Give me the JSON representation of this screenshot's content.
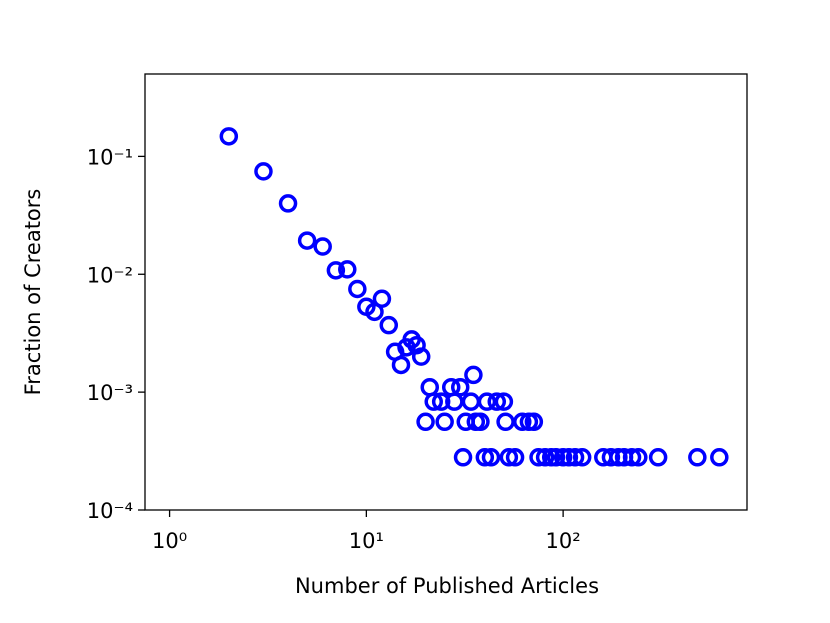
{
  "chart_data": {
    "type": "scatter",
    "x_label": "Number of Published Articles",
    "y_label": "Fraction of Creators",
    "log_x": true,
    "log_y": true,
    "xlim": [
      0.75,
      860
    ],
    "ylim": [
      0.0001,
      0.5
    ],
    "xticks": [
      {
        "value": 1,
        "label": "10⁰"
      },
      {
        "value": 10,
        "label": "10¹"
      },
      {
        "value": 100,
        "label": "10²"
      }
    ],
    "yticks": [
      {
        "value": 0.0001,
        "label": "10⁻⁴"
      },
      {
        "value": 0.001,
        "label": "10⁻³"
      },
      {
        "value": 0.01,
        "label": "10⁻²"
      },
      {
        "value": 0.1,
        "label": "10⁻¹"
      }
    ],
    "color": "#0000ff",
    "x": [
      2,
      3,
      4,
      5,
      6,
      7,
      8,
      9,
      10,
      11,
      12,
      13,
      14,
      15,
      16,
      17,
      18,
      19,
      20,
      21,
      22,
      24,
      25,
      27,
      28,
      30,
      31,
      32,
      34,
      35,
      36,
      38,
      40,
      41,
      43,
      46,
      50,
      51,
      53,
      57,
      62,
      67,
      71,
      75,
      81,
      87,
      92,
      100,
      107,
      115,
      125,
      160,
      175,
      191,
      204,
      224,
      241,
      304,
      481,
      622
    ],
    "y": [
      0.148,
      0.0746,
      0.0399,
      0.0193,
      0.0172,
      0.0108,
      0.011,
      0.0075,
      0.0053,
      0.0048,
      0.0062,
      0.0037,
      0.0022,
      0.0017,
      0.0024,
      0.0028,
      0.0025,
      0.002,
      0.00056,
      0.0011,
      0.00083,
      0.00083,
      0.00056,
      0.0011,
      0.00083,
      0.0011,
      0.00028,
      0.00056,
      0.00083,
      0.0014,
      0.00056,
      0.00056,
      0.00028,
      0.00083,
      0.00028,
      0.00083,
      0.00083,
      0.00056,
      0.00028,
      0.00028,
      0.00056,
      0.00056,
      0.00056,
      0.00028,
      0.00028,
      0.00028,
      0.00028,
      0.00028,
      0.00028,
      0.00028,
      0.00028,
      0.00028,
      0.00028,
      0.00028,
      0.00028,
      0.00028,
      0.00028,
      0.00028,
      0.00028,
      0.00028
    ]
  }
}
